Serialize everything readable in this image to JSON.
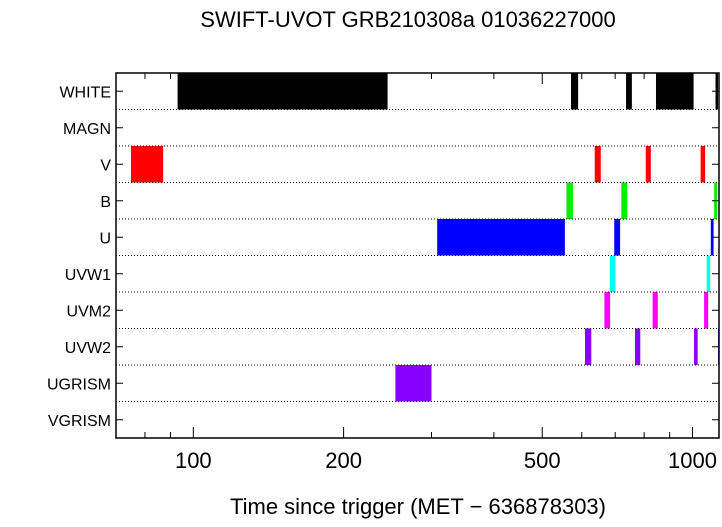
{
  "chart_data": {
    "type": "timeline",
    "title": "SWIFT-UVOT GRB210308a 01036227000",
    "xlabel": "Time since trigger (MET − 636878303)",
    "ylabel": "",
    "x_scale": "log",
    "xlim": [
      70,
      1130
    ],
    "x_ticks": [
      100,
      200,
      500,
      1000
    ],
    "x_tick_labels": [
      "100",
      "200",
      "500",
      "1000"
    ],
    "grid": "dotted row separators",
    "legend": "none",
    "rows": [
      {
        "label": "WHITE",
        "color": "#000000",
        "intervals": [
          [
            93,
            245
          ],
          [
            571,
            590
          ],
          [
            736,
            756
          ],
          [
            845,
            1005
          ],
          [
            1112,
            1125
          ]
        ]
      },
      {
        "label": "MAGN",
        "color": "#000000",
        "intervals": []
      },
      {
        "label": "V",
        "color": "#ff0000",
        "intervals": [
          [
            75,
            87
          ],
          [
            637,
            655
          ],
          [
            806,
            825
          ],
          [
            1038,
            1060
          ]
        ]
      },
      {
        "label": "B",
        "color": "#00ee00",
        "intervals": [
          [
            559,
            576
          ],
          [
            720,
            740
          ],
          [
            1105,
            1120
          ]
        ]
      },
      {
        "label": "U",
        "color": "#0000ff",
        "intervals": [
          [
            308,
            555
          ],
          [
            697,
            716
          ],
          [
            1088,
            1102
          ]
        ]
      },
      {
        "label": "UVW1",
        "color": "#00ffff",
        "intervals": [
          [
            683,
            701
          ],
          [
            1068,
            1085
          ]
        ]
      },
      {
        "label": "UVM2",
        "color": "#ff00ff",
        "intervals": [
          [
            666,
            684
          ],
          [
            832,
            852
          ],
          [
            1055,
            1075
          ]
        ]
      },
      {
        "label": "UVW2",
        "color": "#8800ff",
        "intervals": [
          [
            609,
            627
          ],
          [
            767,
            786
          ],
          [
            1007,
            1024
          ],
          [
            1125,
            1132
          ]
        ]
      },
      {
        "label": "UGRISM",
        "color": "#8800ff",
        "intervals": [
          [
            254,
            300
          ]
        ]
      },
      {
        "label": "VGRISM",
        "color": "#000000",
        "intervals": []
      }
    ]
  }
}
